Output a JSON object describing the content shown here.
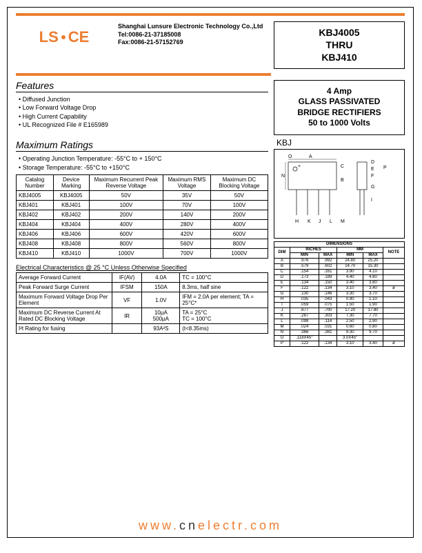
{
  "logo": {
    "text_left": "LS",
    "text_right": "CE"
  },
  "company": {
    "name": "Shanghai Lunsure Electronic Technology Co.,Ltd",
    "tel": "Tel:0086-21-37185008",
    "fax": "Fax:0086-21-57152769"
  },
  "title": {
    "line1": "KBJ4005",
    "line2": "THRU",
    "line3": "KBJ410"
  },
  "desc": {
    "line1": "4 Amp",
    "line2": "GLASS PASSIVATED",
    "line3": "BRIDGE RECTIFIERS",
    "line4": "50 to 1000 Volts"
  },
  "features": {
    "heading": "Features",
    "items": [
      "Diffused Junction",
      "Low Forward Voltage Drop",
      "High Current Capability",
      "UL Recognized File # E165989"
    ]
  },
  "ratings": {
    "heading": "Maximum Ratings",
    "notes": [
      "Operating  Junction  Temperature: -55°C to + 150°C",
      "Storage Temperature: -55°C to +150°C"
    ],
    "columns": [
      "Catalog Number",
      "Device Marking",
      "Maximum Recurrent Peak Reverse Voltage",
      "Maximum RMS Voltage",
      "Maximum DC Blocking Voltage"
    ],
    "rows": [
      [
        "KBJ4005",
        "KBJ4005",
        "50V",
        "35V",
        "50V"
      ],
      [
        "KBJ401",
        "KBJ401",
        "100V",
        "70V",
        "100V"
      ],
      [
        "KBJ402",
        "KBJ402",
        "200V",
        "140V",
        "200V"
      ],
      [
        "KBJ404",
        "KBJ404",
        "400V",
        "280V",
        "400V"
      ],
      [
        "KBJ406",
        "KBJ406",
        "600V",
        "420V",
        "600V"
      ],
      [
        "KBJ408",
        "KBJ408",
        "800V",
        "560V",
        "800V"
      ],
      [
        "KBJ410",
        "KBJ410",
        "1000V",
        "700V",
        "1000V"
      ]
    ]
  },
  "pkg_label": "KBJ",
  "ec": {
    "heading": "Electrical Characteristics @ 25 °C Unless Otherwise Specified",
    "rows": [
      {
        "param": "Average Forward Current",
        "sym": "IF(AV)",
        "val": "4.0A",
        "cond": "TC = 100°C"
      },
      {
        "param": "Peak Forward Surge Current",
        "sym": "IFSM",
        "val": "150A",
        "cond": "8.3ms, half sine"
      },
      {
        "param": "Maximum Forward Voltage Drop Per Element",
        "sym": "VF",
        "val": "1.0V",
        "cond": "IFM = 2.0A per element; TA = 25°C*"
      },
      {
        "param": "Maximum DC Reverse Current At Rated DC Blocking Voltage",
        "sym": "IR",
        "val": "10µA\n500µA",
        "cond": "TA = 25°C\nTC = 100°C"
      },
      {
        "param": "I²t Rating for fusing",
        "sym": "",
        "val": "93A²S",
        "cond": "(t<8.35ms)"
      }
    ]
  },
  "dimensions": {
    "heading": "DIMENSIONS",
    "unit_cols": [
      "INCHES",
      "MM"
    ],
    "sub_cols": [
      "DIM",
      "MIN",
      "MAX",
      "MIN",
      "MAX",
      "NOTE"
    ],
    "rows": [
      [
        "A",
        ".976",
        ".992",
        "24.80",
        "25.20",
        ""
      ],
      [
        "B",
        ".579",
        ".602",
        "14.70",
        "15.30",
        ""
      ],
      [
        "C",
        ".154",
        ".161",
        "3.90",
        "4.10",
        ""
      ],
      [
        "D",
        ".173",
        ".189",
        "4.40",
        "4.80",
        ""
      ],
      [
        "E",
        ".134",
        ".150",
        "3.40",
        "3.80",
        ""
      ],
      [
        "F",
        ".122",
        ".134",
        "3.10",
        "3.40",
        "ø"
      ],
      [
        "G",
        ".130",
        ".146",
        "3.30",
        "3.70",
        ""
      ],
      [
        "H",
        ".035",
        ".043",
        "0.90",
        "1.10",
        ""
      ],
      [
        "I",
        ".059",
        ".075",
        "1.50",
        "1.90",
        ""
      ],
      [
        "J",
        ".677",
        ".700",
        "17.20",
        "17.80",
        ""
      ],
      [
        "K",
        ".287",
        ".303",
        "7.30",
        "7.70",
        ""
      ],
      [
        "L",
        ".098",
        ".114",
        "2.50",
        "2.90",
        ""
      ],
      [
        "M",
        ".024",
        ".031",
        "0.60",
        "0.80",
        ""
      ],
      [
        "N",
        ".366",
        ".381",
        "9.30",
        "9.70",
        ""
      ],
      [
        "O",
        ".118X45°",
        "",
        "3.0X45°",
        "",
        ""
      ],
      [
        "P",
        ".122",
        ".134",
        "3.10",
        "3.40",
        "ø"
      ]
    ]
  },
  "footer": {
    "prefix": "www.",
    "mid": "cn",
    "suffix": "electr.com"
  },
  "colors": {
    "accent": "#ed7d31",
    "text": "#000000"
  }
}
